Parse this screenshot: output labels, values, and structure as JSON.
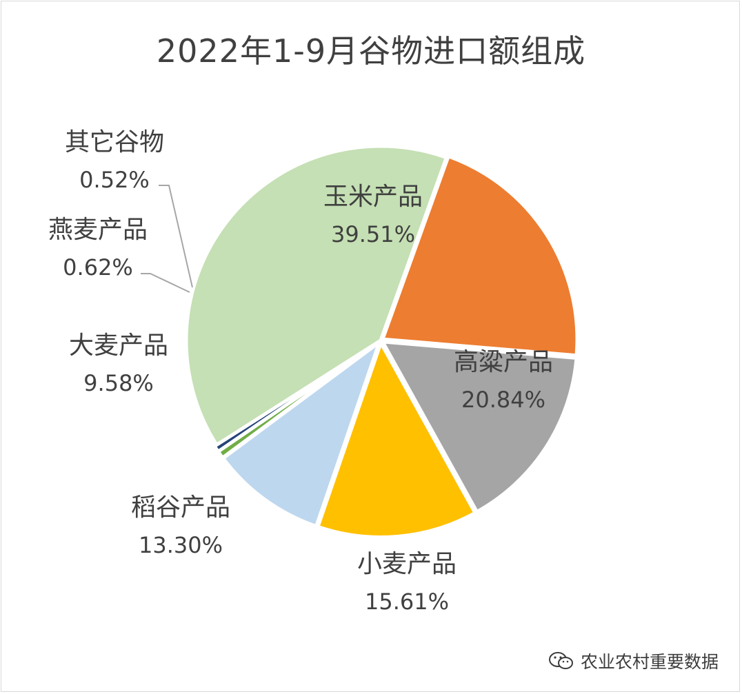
{
  "chart_data": {
    "type": "pie",
    "title": "2022年1-9月谷物进口额组成",
    "slices": [
      {
        "label": "玉米产品",
        "value": 39.51,
        "value_label": "39.51%",
        "color": "#c5e0b4"
      },
      {
        "label": "高粱产品",
        "value": 20.84,
        "value_label": "20.84%",
        "color": "#ed7d31"
      },
      {
        "label": "小麦产品",
        "value": 15.61,
        "value_label": "15.61%",
        "color": "#a5a5a5"
      },
      {
        "label": "稻谷产品",
        "value": 13.3,
        "value_label": "13.30%",
        "color": "#ffc000"
      },
      {
        "label": "大麦产品",
        "value": 9.58,
        "value_label": "9.58%",
        "color": "#bdd7ee"
      },
      {
        "label": "燕麦产品",
        "value": 0.62,
        "value_label": "0.62%",
        "color": "#70ad47"
      },
      {
        "label": "其它谷物",
        "value": 0.52,
        "value_label": "0.52%",
        "color": "#264478"
      }
    ]
  },
  "watermark": {
    "text": "农业农村重要数据",
    "icon": "wechat-icon"
  }
}
